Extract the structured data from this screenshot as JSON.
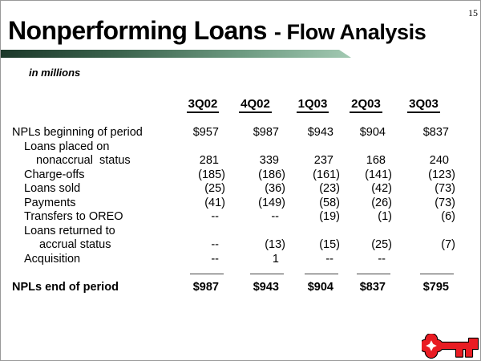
{
  "page_number": "15",
  "title": {
    "main": "Nonperforming Loans",
    "sub": "- Flow Analysis"
  },
  "units_label": "in millions",
  "colors": {
    "bar_gradient_left": "#1c382a",
    "bar_gradient_right": "#a2c9b2",
    "logo_red": "#e91c23",
    "text": "#000000"
  },
  "table": {
    "columns": [
      "3Q02",
      "4Q02",
      "1Q03",
      "2Q03",
      "3Q03"
    ],
    "rows": [
      {
        "label": "NPLs beginning of period",
        "indent": 0,
        "values": [
          "$957",
          "$987",
          "$943",
          "$904",
          "$837"
        ]
      },
      {
        "label": "Loans placed on",
        "indent": 15,
        "values": [
          "",
          "",
          "",
          "",
          ""
        ]
      },
      {
        "label": "nonaccrual  status",
        "indent": 30,
        "values": [
          "281",
          "339",
          "237",
          "168",
          "240"
        ]
      },
      {
        "label": "Charge-offs",
        "indent": 15,
        "values": [
          "(185)",
          "(186)",
          "(161)",
          "(141)",
          "(123)"
        ]
      },
      {
        "label": "Loans sold",
        "indent": 15,
        "values": [
          "(25)",
          "(36)",
          "(23)",
          "(42)",
          "(73)"
        ]
      },
      {
        "label": "Payments",
        "indent": 15,
        "values": [
          "(41)",
          "(149)",
          "(58)",
          "(26)",
          "(73)"
        ]
      },
      {
        "label": "Transfers to OREO",
        "indent": 15,
        "values": [
          "--",
          "--",
          "(19)",
          "(1)",
          "(6)"
        ]
      },
      {
        "label": "Loans returned to",
        "indent": 15,
        "values": [
          "",
          "",
          "",
          "",
          ""
        ]
      },
      {
        "label": "accrual status",
        "indent": 34,
        "values": [
          "--",
          "(13)",
          "(15)",
          "(25)",
          "(7)"
        ]
      },
      {
        "label": "Acquisition",
        "indent": 15,
        "values": [
          "--",
          "1",
          "--",
          "--",
          ""
        ]
      }
    ],
    "total_row": {
      "label": "NPLs end of period",
      "values": [
        "$987",
        "$943",
        "$904",
        "$837",
        "$795"
      ]
    }
  },
  "logo": {
    "name": "key-logo"
  }
}
